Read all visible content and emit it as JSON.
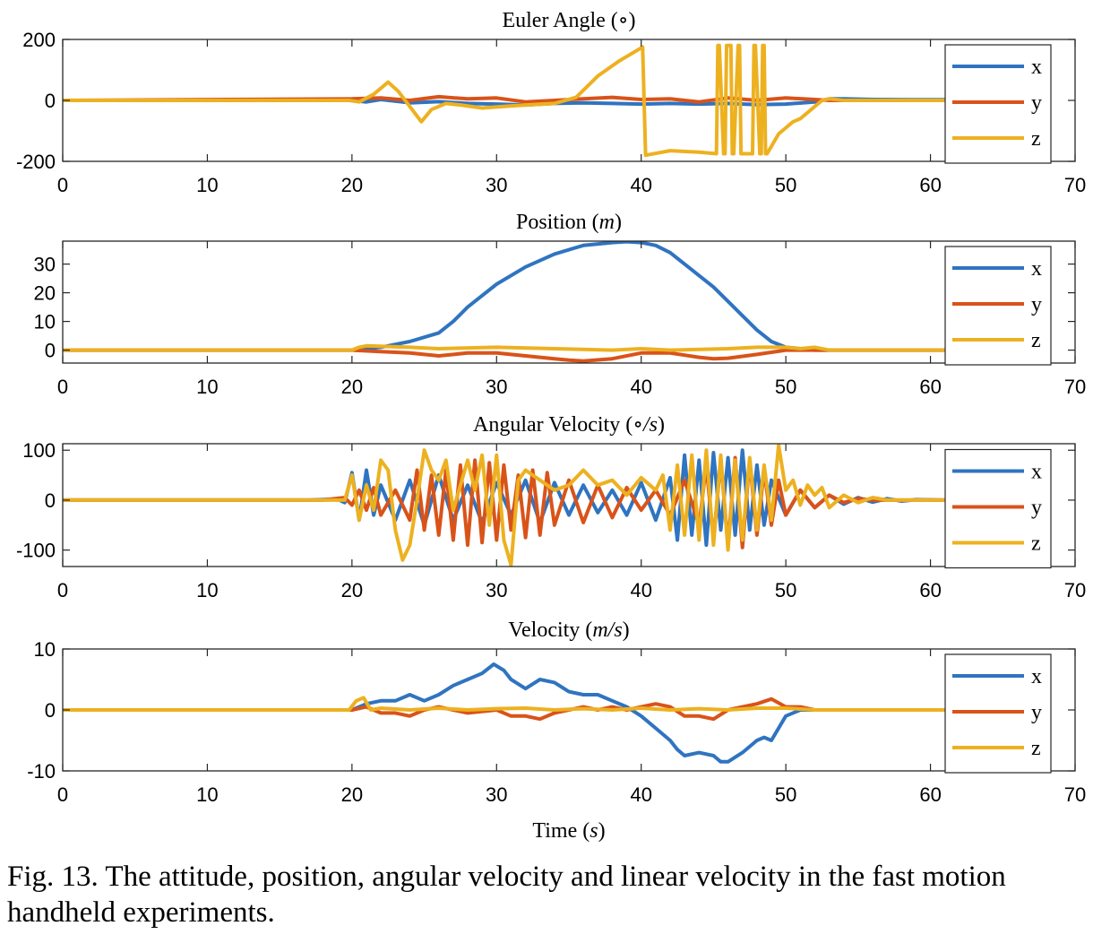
{
  "figure": {
    "caption": "Fig. 13.  The attitude, position, angular velocity and linear velocity in the fast motion handheld experiments.",
    "xlabel": "Time",
    "xlabel_unit": "s",
    "colors": {
      "x": "#2f74c0",
      "y": "#d95319",
      "z": "#edb120"
    }
  },
  "chart_data": [
    {
      "type": "line",
      "title": "Euler Angle",
      "title_unit": "∘",
      "xlim": [
        0,
        70
      ],
      "ylim": [
        -200,
        200
      ],
      "xticks": [
        0,
        10,
        20,
        30,
        40,
        50,
        60,
        70
      ],
      "yticks": [
        -200,
        0,
        200
      ],
      "legend": "right",
      "series": [
        {
          "name": "x",
          "x": [
            0,
            20,
            21,
            22,
            24,
            26,
            28,
            30,
            32,
            34,
            36,
            38,
            40,
            42,
            44,
            46,
            48,
            50,
            52,
            53,
            54,
            56,
            60,
            61
          ],
          "y": [
            0,
            0,
            -5,
            3,
            -8,
            -4,
            -10,
            -12,
            -15,
            -10,
            -8,
            -10,
            -12,
            -10,
            -12,
            -10,
            -14,
            -12,
            -5,
            5,
            5,
            3,
            2,
            2
          ]
        },
        {
          "name": "y",
          "x": [
            0,
            20,
            22,
            24,
            26,
            28,
            30,
            32,
            34,
            36,
            38,
            40,
            42,
            44,
            46,
            48,
            50,
            52,
            53,
            56,
            60,
            61
          ],
          "y": [
            0,
            5,
            8,
            0,
            12,
            5,
            8,
            -5,
            0,
            5,
            10,
            3,
            5,
            -5,
            8,
            0,
            8,
            3,
            0,
            0,
            0,
            0
          ]
        },
        {
          "name": "z",
          "x": [
            0,
            19.8,
            20.5,
            21.5,
            22.5,
            23.2,
            24,
            24.8,
            25.5,
            26.5,
            27.5,
            29,
            30.5,
            32,
            34,
            35.5,
            37,
            38.5,
            40.1,
            40.3,
            42,
            44,
            45.2,
            45.3,
            45.4,
            45.7,
            45.8,
            45.9,
            46.2,
            46.3,
            46.4,
            46.7,
            46.8,
            46.9,
            47.7,
            47.8,
            47.9,
            48.2,
            48.3,
            48.4,
            48.5,
            48.6,
            48.7,
            49.5,
            50,
            50.5,
            51,
            51.5,
            52,
            52.5,
            53,
            54,
            56,
            60,
            61
          ],
          "y": [
            0,
            0,
            -5,
            20,
            60,
            30,
            -20,
            -70,
            -30,
            -10,
            -15,
            -25,
            -20,
            -15,
            -10,
            10,
            80,
            130,
            175,
            -180,
            -165,
            -170,
            -175,
            180,
            180,
            -175,
            -175,
            180,
            180,
            -175,
            -175,
            180,
            180,
            -175,
            -175,
            180,
            180,
            -175,
            -175,
            180,
            180,
            -175,
            -175,
            -110,
            -90,
            -70,
            -60,
            -40,
            -20,
            0,
            5,
            0,
            0,
            0,
            0
          ]
        }
      ]
    },
    {
      "type": "line",
      "title": "Position",
      "title_unit": "m",
      "xlim": [
        0,
        70
      ],
      "ylim": [
        -4.5,
        38
      ],
      "xticks": [
        0,
        10,
        20,
        30,
        40,
        50,
        60,
        70
      ],
      "yticks": [
        0,
        10,
        20,
        30
      ],
      "legend": "right",
      "series": [
        {
          "name": "x",
          "x": [
            0,
            20,
            22,
            24,
            26,
            27,
            28,
            29,
            30,
            32,
            34,
            36,
            38,
            39,
            40,
            41,
            42,
            43,
            44,
            45,
            46,
            47,
            48,
            49,
            50,
            51,
            52,
            61
          ],
          "y": [
            0,
            0,
            1,
            3,
            6,
            10,
            15,
            19,
            23,
            29,
            33.5,
            36.5,
            37.5,
            37.8,
            37.5,
            36.5,
            34,
            30,
            26,
            22,
            17,
            12,
            7,
            3,
            1,
            0.5,
            0,
            0
          ]
        },
        {
          "name": "y",
          "x": [
            0,
            20,
            22,
            24,
            26,
            28,
            30,
            32,
            34,
            35,
            36,
            38,
            40,
            42,
            44,
            45,
            46,
            48,
            50,
            52,
            53,
            61
          ],
          "y": [
            0,
            0,
            -0.5,
            -1,
            -2,
            -1,
            -1,
            -2,
            -3,
            -3.5,
            -3.8,
            -3,
            -1,
            -1,
            -2.5,
            -3,
            -2.8,
            -1.5,
            0,
            0,
            0,
            0
          ]
        },
        {
          "name": "z",
          "x": [
            0,
            20,
            20.5,
            21,
            24,
            26,
            30,
            34,
            38,
            40,
            42,
            46,
            48,
            50,
            51,
            52,
            53,
            61
          ],
          "y": [
            0,
            0,
            1,
            1.5,
            1,
            0.5,
            1,
            0.5,
            0,
            0.5,
            0,
            0.5,
            1,
            1,
            0.5,
            1,
            0,
            0
          ]
        }
      ]
    },
    {
      "type": "line",
      "title": "Angular Velocity",
      "title_unit": "∘/s",
      "xlim": [
        0,
        70
      ],
      "ylim": [
        -133,
        113
      ],
      "xticks": [
        0,
        10,
        20,
        30,
        40,
        50,
        60,
        70
      ],
      "yticks": [
        -100,
        0,
        100
      ],
      "legend": "right",
      "series": [
        {
          "name": "x",
          "x": [
            0,
            17,
            19,
            19.5,
            20,
            20.5,
            21,
            21.5,
            22,
            23,
            24,
            25,
            26,
            27,
            28,
            29,
            30,
            31,
            32,
            33,
            34,
            35,
            36,
            37,
            38,
            39,
            40,
            41,
            42,
            42.5,
            43,
            43.5,
            44,
            44.5,
            45,
            45.5,
            46,
            46.5,
            47,
            47.5,
            48,
            48.5,
            49,
            50,
            51,
            52,
            53,
            54,
            55,
            56,
            57,
            58,
            59,
            61
          ],
          "y": [
            0,
            0,
            2,
            -5,
            55,
            -40,
            60,
            -30,
            30,
            -40,
            40,
            -50,
            50,
            -40,
            30,
            -45,
            35,
            -30,
            40,
            -45,
            35,
            -30,
            30,
            -25,
            20,
            -30,
            35,
            -40,
            45,
            -80,
            90,
            -70,
            80,
            -90,
            95,
            -60,
            85,
            -70,
            100,
            -60,
            70,
            -50,
            40,
            -30,
            20,
            -15,
            10,
            -8,
            5,
            -4,
            3,
            -2,
            1,
            0
          ]
        },
        {
          "name": "y",
          "x": [
            0,
            18,
            19.5,
            20,
            20.5,
            21,
            21.5,
            22,
            23,
            24,
            24.5,
            25,
            25.5,
            26,
            26.5,
            27,
            27.5,
            28,
            28.5,
            29,
            29.5,
            30,
            30.5,
            31,
            31.5,
            32,
            32.5,
            33,
            33.5,
            34,
            35,
            36,
            37,
            38,
            39,
            40,
            41,
            42,
            43,
            44,
            44.5,
            45,
            45.5,
            46,
            46.5,
            47,
            47.5,
            48,
            48.5,
            49,
            49.5,
            50,
            51,
            52,
            53,
            54,
            55,
            56,
            61
          ],
          "y": [
            0,
            0,
            5,
            -10,
            20,
            -20,
            25,
            -30,
            20,
            -40,
            60,
            -60,
            50,
            -70,
            60,
            -80,
            70,
            -90,
            80,
            -85,
            75,
            -80,
            70,
            -60,
            50,
            -75,
            60,
            -70,
            55,
            -50,
            40,
            -45,
            30,
            -35,
            25,
            -20,
            20,
            -30,
            40,
            -50,
            70,
            -80,
            80,
            -90,
            85,
            -95,
            80,
            -70,
            60,
            -50,
            40,
            -30,
            20,
            -15,
            10,
            -5,
            3,
            0,
            0
          ]
        },
        {
          "name": "z",
          "x": [
            0,
            19.5,
            20,
            20.5,
            21,
            21.5,
            22,
            22.5,
            23,
            23.5,
            24,
            24.5,
            25,
            25.5,
            26,
            26.5,
            27,
            28,
            28.5,
            29,
            29.5,
            30,
            30.5,
            31,
            31.5,
            32,
            33,
            34,
            35,
            36,
            37,
            38,
            39,
            40,
            41,
            41.5,
            42,
            42.5,
            43,
            43.5,
            44,
            44.5,
            45,
            45.5,
            46,
            46.5,
            47,
            47.5,
            48,
            48.5,
            49,
            49.5,
            50,
            50.5,
            51,
            51.5,
            52,
            52.5,
            53,
            54,
            55,
            56,
            57,
            58,
            61
          ],
          "y": [
            0,
            0,
            50,
            -40,
            30,
            -20,
            80,
            60,
            -60,
            -120,
            -90,
            0,
            100,
            60,
            40,
            80,
            -20,
            80,
            20,
            90,
            -50,
            90,
            -80,
            -130,
            40,
            60,
            40,
            20,
            30,
            60,
            30,
            40,
            10,
            45,
            20,
            50,
            -60,
            70,
            -70,
            90,
            -80,
            100,
            -90,
            90,
            -100,
            80,
            -80,
            85,
            -60,
            70,
            -40,
            110,
            20,
            40,
            -10,
            30,
            10,
            25,
            -15,
            10,
            -5,
            5,
            0,
            0,
            0
          ]
        }
      ]
    },
    {
      "type": "line",
      "title": "Velocity",
      "title_unit": "m/s",
      "xlim": [
        0,
        70
      ],
      "ylim": [
        -10,
        10
      ],
      "xticks": [
        0,
        10,
        20,
        30,
        40,
        50,
        60,
        70
      ],
      "yticks": [
        -10,
        0,
        10
      ],
      "legend": "right",
      "series": [
        {
          "name": "x",
          "x": [
            0,
            20,
            21,
            22,
            23,
            24,
            25,
            26,
            27,
            28,
            29,
            29.8,
            30.5,
            31,
            32,
            33,
            34,
            35,
            36,
            37,
            38,
            39,
            40,
            41,
            42,
            42.5,
            43,
            44,
            45,
            45.5,
            46,
            47,
            48,
            48.5,
            49,
            50,
            51,
            52,
            53,
            61
          ],
          "y": [
            0,
            0,
            1,
            1.5,
            1.5,
            2.5,
            1.5,
            2.5,
            4,
            5,
            6,
            7.5,
            6.5,
            5,
            3.5,
            5,
            4.5,
            3,
            2.5,
            2.5,
            1.5,
            0.5,
            -1,
            -3,
            -5,
            -6.5,
            -7.5,
            -7,
            -7.5,
            -8.5,
            -8.5,
            -7,
            -5,
            -4.5,
            -5,
            -1,
            0,
            0,
            0,
            0
          ]
        },
        {
          "name": "y",
          "x": [
            0,
            20,
            21,
            22,
            23,
            24,
            25,
            26,
            27,
            28,
            30,
            31,
            32,
            33,
            34,
            35,
            36,
            37,
            38,
            39,
            40,
            41,
            42,
            43,
            44,
            45,
            46,
            47,
            48,
            49,
            50,
            51,
            52,
            53,
            61
          ],
          "y": [
            0,
            0,
            0.5,
            -0.5,
            -0.5,
            -1,
            0,
            0.5,
            0,
            -0.5,
            0,
            -1,
            -1,
            -1.5,
            -0.5,
            0,
            0.5,
            0,
            0.5,
            0,
            0.5,
            1,
            0.5,
            -1,
            -1,
            -1.5,
            0,
            0.5,
            1,
            1.8,
            0.5,
            0.5,
            0,
            0,
            0
          ]
        },
        {
          "name": "z",
          "x": [
            0,
            19.8,
            20.3,
            20.8,
            21.3,
            22,
            24,
            26,
            28,
            30,
            32,
            34,
            36,
            38,
            40,
            42,
            44,
            46,
            48,
            50,
            52,
            53,
            61
          ],
          "y": [
            0,
            0,
            1.5,
            2,
            0,
            0.3,
            0,
            0.3,
            0,
            0.2,
            0.3,
            0,
            0.2,
            0,
            0.3,
            0,
            0.2,
            0,
            0.3,
            0.3,
            0,
            0,
            0
          ]
        }
      ]
    }
  ]
}
